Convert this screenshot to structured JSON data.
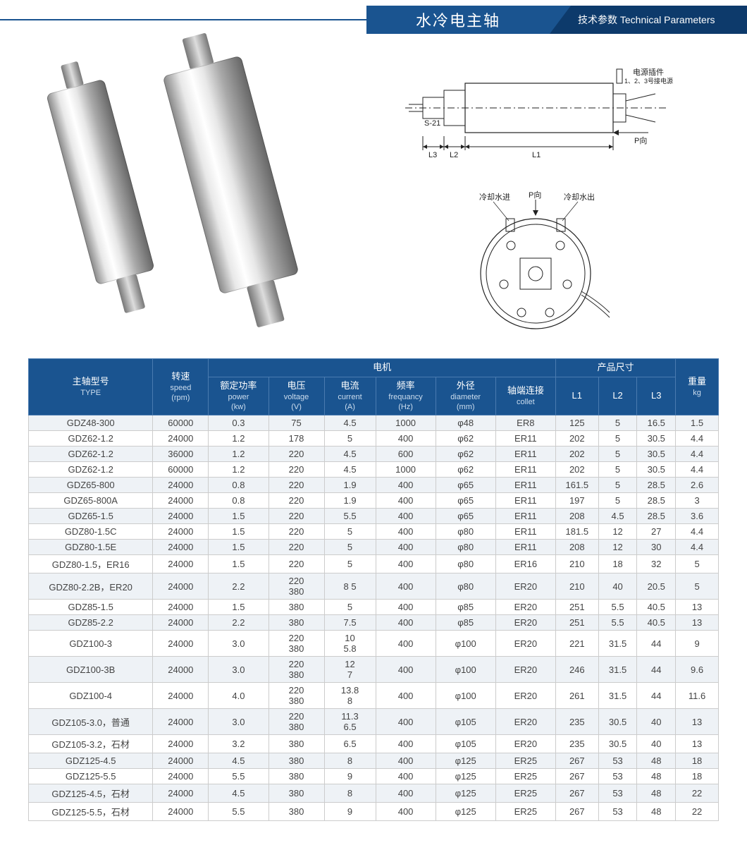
{
  "header": {
    "title_cn": "水冷电主轴",
    "subtitle_cn": "技术参数",
    "subtitle_en": "Technical Parameters"
  },
  "colors": {
    "header_mid": "#1a5490",
    "header_right": "#0d3a6b",
    "header_border": "#4a7bb0",
    "row_odd_bg": "#eef2f6",
    "row_even_bg": "#ffffff",
    "cell_border": "#cccccc",
    "text": "#444444"
  },
  "diagram_side": {
    "labels": {
      "s21": "S-21",
      "l3": "L3",
      "l2": "L2",
      "l1": "L1",
      "p_dir": "P向",
      "connector_cn": "电源插件",
      "connector_note": "1、2、3号接电源"
    }
  },
  "diagram_end": {
    "labels": {
      "water_in": "冷却水进",
      "p_dir": "P向",
      "water_out": "冷却水出"
    }
  },
  "table": {
    "headers": {
      "type_cn": "主轴型号",
      "type_en": "TYPE",
      "speed_cn": "转速",
      "speed_en": "speed",
      "speed_unit": "(rpm)",
      "motor_cn": "电机",
      "power_cn": "额定功率",
      "power_en": "power",
      "power_unit": "(kw)",
      "voltage_cn": "电压",
      "voltage_en": "voltage",
      "voltage_unit": "(V)",
      "current_cn": "电流",
      "current_en": "current",
      "current_unit": "(A)",
      "freq_cn": "频率",
      "freq_en": "frequancy",
      "freq_unit": "(Hz)",
      "diameter_cn": "外径",
      "diameter_en": "diameter",
      "diameter_unit": "(mm)",
      "collet_cn": "轴端连接",
      "collet_en": "collet",
      "size_cn": "产品尺寸",
      "l1": "L1",
      "l2": "L2",
      "l3": "L3",
      "weight_cn": "重量",
      "weight_unit": "kg"
    },
    "rows": [
      {
        "type": "GDZ48-300",
        "speed": "60000",
        "power": "0.3",
        "voltage": "75",
        "current": "4.5",
        "freq": "1000",
        "dia": "φ48",
        "collet": "ER8",
        "l1": "125",
        "l2": "5",
        "l3": "16.5",
        "kg": "1.5"
      },
      {
        "type": "GDZ62-1.2",
        "speed": "24000",
        "power": "1.2",
        "voltage": "178",
        "current": "5",
        "freq": "400",
        "dia": "φ62",
        "collet": "ER11",
        "l1": "202",
        "l2": "5",
        "l3": "30.5",
        "kg": "4.4"
      },
      {
        "type": "GDZ62-1.2",
        "speed": "36000",
        "power": "1.2",
        "voltage": "220",
        "current": "4.5",
        "freq": "600",
        "dia": "φ62",
        "collet": "ER11",
        "l1": "202",
        "l2": "5",
        "l3": "30.5",
        "kg": "4.4"
      },
      {
        "type": "GDZ62-1.2",
        "speed": "60000",
        "power": "1.2",
        "voltage": "220",
        "current": "4.5",
        "freq": "1000",
        "dia": "φ62",
        "collet": "ER11",
        "l1": "202",
        "l2": "5",
        "l3": "30.5",
        "kg": "4.4"
      },
      {
        "type": "GDZ65-800",
        "speed": "24000",
        "power": "0.8",
        "voltage": "220",
        "current": "1.9",
        "freq": "400",
        "dia": "φ65",
        "collet": "ER11",
        "l1": "161.5",
        "l2": "5",
        "l3": "28.5",
        "kg": "2.6"
      },
      {
        "type": "GDZ65-800A",
        "speed": "24000",
        "power": "0.8",
        "voltage": "220",
        "current": "1.9",
        "freq": "400",
        "dia": "φ65",
        "collet": "ER11",
        "l1": "197",
        "l2": "5",
        "l3": "28.5",
        "kg": "3"
      },
      {
        "type": "GDZ65-1.5",
        "speed": "24000",
        "power": "1.5",
        "voltage": "220",
        "current": "5.5",
        "freq": "400",
        "dia": "φ65",
        "collet": "ER11",
        "l1": "208",
        "l2": "4.5",
        "l3": "28.5",
        "kg": "3.6"
      },
      {
        "type": "GDZ80-1.5C",
        "speed": "24000",
        "power": "1.5",
        "voltage": "220",
        "current": "5",
        "freq": "400",
        "dia": "φ80",
        "collet": "ER11",
        "l1": "181.5",
        "l2": "12",
        "l3": "27",
        "kg": "4.4"
      },
      {
        "type": "GDZ80-1.5E",
        "speed": "24000",
        "power": "1.5",
        "voltage": "220",
        "current": "5",
        "freq": "400",
        "dia": "φ80",
        "collet": "ER11",
        "l1": "208",
        "l2": "12",
        "l3": "30",
        "kg": "4.4"
      },
      {
        "type": "GDZ80-1.5，ER16",
        "speed": "24000",
        "power": "1.5",
        "voltage": "220",
        "current": "5",
        "freq": "400",
        "dia": "φ80",
        "collet": "ER16",
        "l1": "210",
        "l2": "18",
        "l3": "32",
        "kg": "5"
      },
      {
        "type": "GDZ80-2.2B，ER20",
        "speed": "24000",
        "power": "2.2",
        "voltage": "220\n380",
        "current": "8 5",
        "freq": "400",
        "dia": "φ80",
        "collet": "ER20",
        "l1": "210",
        "l2": "40",
        "l3": "20.5",
        "kg": "5"
      },
      {
        "type": "GDZ85-1.5",
        "speed": "24000",
        "power": "1.5",
        "voltage": "380",
        "current": "5",
        "freq": "400",
        "dia": "φ85",
        "collet": "ER20",
        "l1": "251",
        "l2": "5.5",
        "l3": "40.5",
        "kg": "13"
      },
      {
        "type": "GDZ85-2.2",
        "speed": "24000",
        "power": "2.2",
        "voltage": "380",
        "current": "7.5",
        "freq": "400",
        "dia": "φ85",
        "collet": "ER20",
        "l1": "251",
        "l2": "5.5",
        "l3": "40.5",
        "kg": "13"
      },
      {
        "type": "GDZ100-3",
        "speed": "24000",
        "power": "3.0",
        "voltage": "220\n380",
        "current": "10\n5.8",
        "freq": "400",
        "dia": "φ100",
        "collet": "ER20",
        "l1": "221",
        "l2": "31.5",
        "l3": "44",
        "kg": "9"
      },
      {
        "type": "GDZ100-3B",
        "speed": "24000",
        "power": "3.0",
        "voltage": "220\n380",
        "current": "12\n7",
        "freq": "400",
        "dia": "φ100",
        "collet": "ER20",
        "l1": "246",
        "l2": "31.5",
        "l3": "44",
        "kg": "9.6"
      },
      {
        "type": "GDZ100-4",
        "speed": "24000",
        "power": "4.0",
        "voltage": "220\n380",
        "current": "13.8\n8",
        "freq": "400",
        "dia": "φ100",
        "collet": "ER20",
        "l1": "261",
        "l2": "31.5",
        "l3": "44",
        "kg": "11.6"
      },
      {
        "type": "GDZ105-3.0，普通",
        "speed": "24000",
        "power": "3.0",
        "voltage": "220\n380",
        "current": "11.3\n6.5",
        "freq": "400",
        "dia": "φ105",
        "collet": "ER20",
        "l1": "235",
        "l2": "30.5",
        "l3": "40",
        "kg": "13"
      },
      {
        "type": "GDZ105-3.2，石材",
        "speed": "24000",
        "power": "3.2",
        "voltage": "380",
        "current": "6.5",
        "freq": "400",
        "dia": "φ105",
        "collet": "ER20",
        "l1": "235",
        "l2": "30.5",
        "l3": "40",
        "kg": "13"
      },
      {
        "type": "GDZ125-4.5",
        "speed": "24000",
        "power": "4.5",
        "voltage": "380",
        "current": "8",
        "freq": "400",
        "dia": "φ125",
        "collet": "ER25",
        "l1": "267",
        "l2": "53",
        "l3": "48",
        "kg": "18"
      },
      {
        "type": "GDZ125-5.5",
        "speed": "24000",
        "power": "5.5",
        "voltage": "380",
        "current": "9",
        "freq": "400",
        "dia": "φ125",
        "collet": "ER25",
        "l1": "267",
        "l2": "53",
        "l3": "48",
        "kg": "18"
      },
      {
        "type": "GDZ125-4.5，石材",
        "speed": "24000",
        "power": "4.5",
        "voltage": "380",
        "current": "8",
        "freq": "400",
        "dia": "φ125",
        "collet": "ER25",
        "l1": "267",
        "l2": "53",
        "l3": "48",
        "kg": "22"
      },
      {
        "type": "GDZ125-5.5，石材",
        "speed": "24000",
        "power": "5.5",
        "voltage": "380",
        "current": "9",
        "freq": "400",
        "dia": "φ125",
        "collet": "ER25",
        "l1": "267",
        "l2": "53",
        "l3": "48",
        "kg": "22"
      }
    ]
  }
}
